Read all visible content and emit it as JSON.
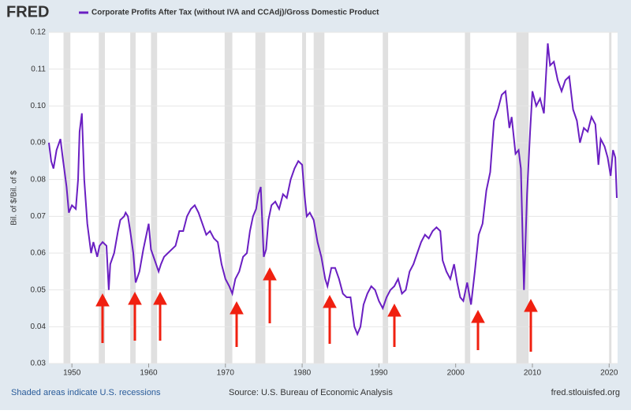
{
  "logo": "FRED",
  "chart_data": {
    "type": "line",
    "title": "Corporate Profits After Tax (without IVA and CCAdj)/Gross Domestic Product",
    "ylabel": "Bil. of $/Bil. of $",
    "x": [
      1947.0,
      1947.3,
      1947.6,
      1948.0,
      1948.5,
      1948.8,
      1949.3,
      1949.6,
      1950.0,
      1950.5,
      1950.8,
      1951.0,
      1951.3,
      1951.6,
      1952.0,
      1952.5,
      1952.8,
      1953.3,
      1953.6,
      1954.0,
      1954.5,
      1954.8,
      1955.0,
      1955.5,
      1956.0,
      1956.3,
      1956.8,
      1957.0,
      1957.3,
      1957.6,
      1958.0,
      1958.3,
      1958.8,
      1959.3,
      1959.7,
      1960.0,
      1960.3,
      1960.8,
      1961.3,
      1961.6,
      1962.0,
      1962.5,
      1963.0,
      1963.5,
      1964.0,
      1964.5,
      1965.0,
      1965.5,
      1966.0,
      1966.5,
      1967.0,
      1967.5,
      1968.0,
      1968.5,
      1969.0,
      1969.5,
      1970.0,
      1970.5,
      1970.9,
      1971.3,
      1971.8,
      1972.3,
      1972.8,
      1973.2,
      1973.6,
      1974.0,
      1974.3,
      1974.6,
      1975.0,
      1975.3,
      1975.6,
      1976.0,
      1976.5,
      1977.0,
      1977.5,
      1978.0,
      1978.5,
      1979.0,
      1979.5,
      1980.0,
      1980.3,
      1980.6,
      1981.0,
      1981.5,
      1982.0,
      1982.5,
      1983.0,
      1983.3,
      1983.8,
      1984.3,
      1984.8,
      1985.3,
      1985.8,
      1986.3,
      1986.8,
      1987.2,
      1987.6,
      1988.0,
      1988.5,
      1989.0,
      1989.5,
      1990.0,
      1990.5,
      1991.0,
      1991.5,
      1992.0,
      1992.5,
      1993.0,
      1993.5,
      1994.0,
      1994.5,
      1995.0,
      1995.5,
      1996.0,
      1996.5,
      1997.0,
      1997.5,
      1998.0,
      1998.3,
      1998.8,
      1999.3,
      1999.8,
      2000.2,
      2000.6,
      2001.0,
      2001.5,
      2002.0,
      2002.5,
      2003.0,
      2003.5,
      2004.0,
      2004.5,
      2005.0,
      2005.5,
      2006.0,
      2006.5,
      2007.0,
      2007.3,
      2007.8,
      2008.2,
      2008.5,
      2008.9,
      2009.3,
      2009.7,
      2010.0,
      2010.5,
      2011.0,
      2011.5,
      2012.0,
      2012.3,
      2012.8,
      2013.3,
      2013.8,
      2014.3,
      2014.8,
      2015.3,
      2015.8,
      2016.2,
      2016.7,
      2017.2,
      2017.7,
      2018.2,
      2018.6,
      2018.9,
      2019.4,
      2019.8,
      2020.2,
      2020.5,
      2020.8,
      2021.0
    ],
    "series": [
      {
        "name": "Corporate Profits After Tax (without IVA and CCAdj)/Gross Domestic Product",
        "color": "#6a1fc2",
        "values": [
          0.09,
          0.085,
          0.083,
          0.088,
          0.091,
          0.086,
          0.078,
          0.071,
          0.073,
          0.072,
          0.08,
          0.093,
          0.098,
          0.08,
          0.068,
          0.06,
          0.063,
          0.059,
          0.062,
          0.063,
          0.062,
          0.05,
          0.057,
          0.06,
          0.066,
          0.069,
          0.07,
          0.071,
          0.07,
          0.066,
          0.06,
          0.052,
          0.055,
          0.061,
          0.065,
          0.068,
          0.061,
          0.058,
          0.055,
          0.057,
          0.059,
          0.06,
          0.061,
          0.062,
          0.066,
          0.066,
          0.07,
          0.072,
          0.073,
          0.071,
          0.068,
          0.065,
          0.066,
          0.064,
          0.063,
          0.057,
          0.053,
          0.051,
          0.049,
          0.053,
          0.055,
          0.059,
          0.06,
          0.066,
          0.07,
          0.072,
          0.076,
          0.078,
          0.059,
          0.061,
          0.069,
          0.073,
          0.074,
          0.072,
          0.076,
          0.075,
          0.08,
          0.083,
          0.085,
          0.084,
          0.076,
          0.07,
          0.071,
          0.069,
          0.063,
          0.059,
          0.053,
          0.051,
          0.056,
          0.056,
          0.053,
          0.049,
          0.048,
          0.048,
          0.04,
          0.038,
          0.04,
          0.046,
          0.049,
          0.051,
          0.05,
          0.047,
          0.045,
          0.048,
          0.05,
          0.051,
          0.053,
          0.049,
          0.05,
          0.055,
          0.057,
          0.06,
          0.063,
          0.065,
          0.064,
          0.066,
          0.067,
          0.066,
          0.058,
          0.055,
          0.053,
          0.057,
          0.052,
          0.048,
          0.047,
          0.052,
          0.046,
          0.055,
          0.065,
          0.068,
          0.077,
          0.082,
          0.096,
          0.099,
          0.103,
          0.104,
          0.094,
          0.097,
          0.087,
          0.088,
          0.083,
          0.05,
          0.076,
          0.093,
          0.104,
          0.1,
          0.102,
          0.098,
          0.117,
          0.111,
          0.112,
          0.107,
          0.104,
          0.107,
          0.108,
          0.099,
          0.096,
          0.09,
          0.094,
          0.093,
          0.097,
          0.095,
          0.084,
          0.091,
          0.089,
          0.086,
          0.081,
          0.088,
          0.086,
          0.075
        ]
      }
    ],
    "recessions": [
      [
        1948.9,
        1949.8
      ],
      [
        1953.5,
        1954.3
      ],
      [
        1957.6,
        1958.3
      ],
      [
        1960.3,
        1961.1
      ],
      [
        1969.9,
        1970.9
      ],
      [
        1973.9,
        1975.2
      ],
      [
        1980.0,
        1980.5
      ],
      [
        1981.5,
        1982.9
      ],
      [
        1990.5,
        1991.2
      ],
      [
        2001.2,
        2001.9
      ],
      [
        2007.9,
        2009.5
      ],
      [
        2020.0,
        2020.3
      ]
    ],
    "xlim": [
      1947,
      2021.1
    ],
    "xticks": [
      1950,
      1960,
      1970,
      1980,
      1990,
      2000,
      2010,
      2020
    ],
    "ylim": [
      0.03,
      0.12
    ],
    "yticks": [
      0.03,
      0.04,
      0.05,
      0.06,
      0.07,
      0.08,
      0.09,
      {
        "value": 0.1,
        "label": "0.10"
      },
      0.11,
      0.12
    ],
    "grid": true,
    "notes": {
      "recessions": "Shaded areas indicate U.S. recessions",
      "source": "Source: U.S. Bureau of Economic Analysis",
      "site": "fred.stlouisfed.org"
    }
  }
}
